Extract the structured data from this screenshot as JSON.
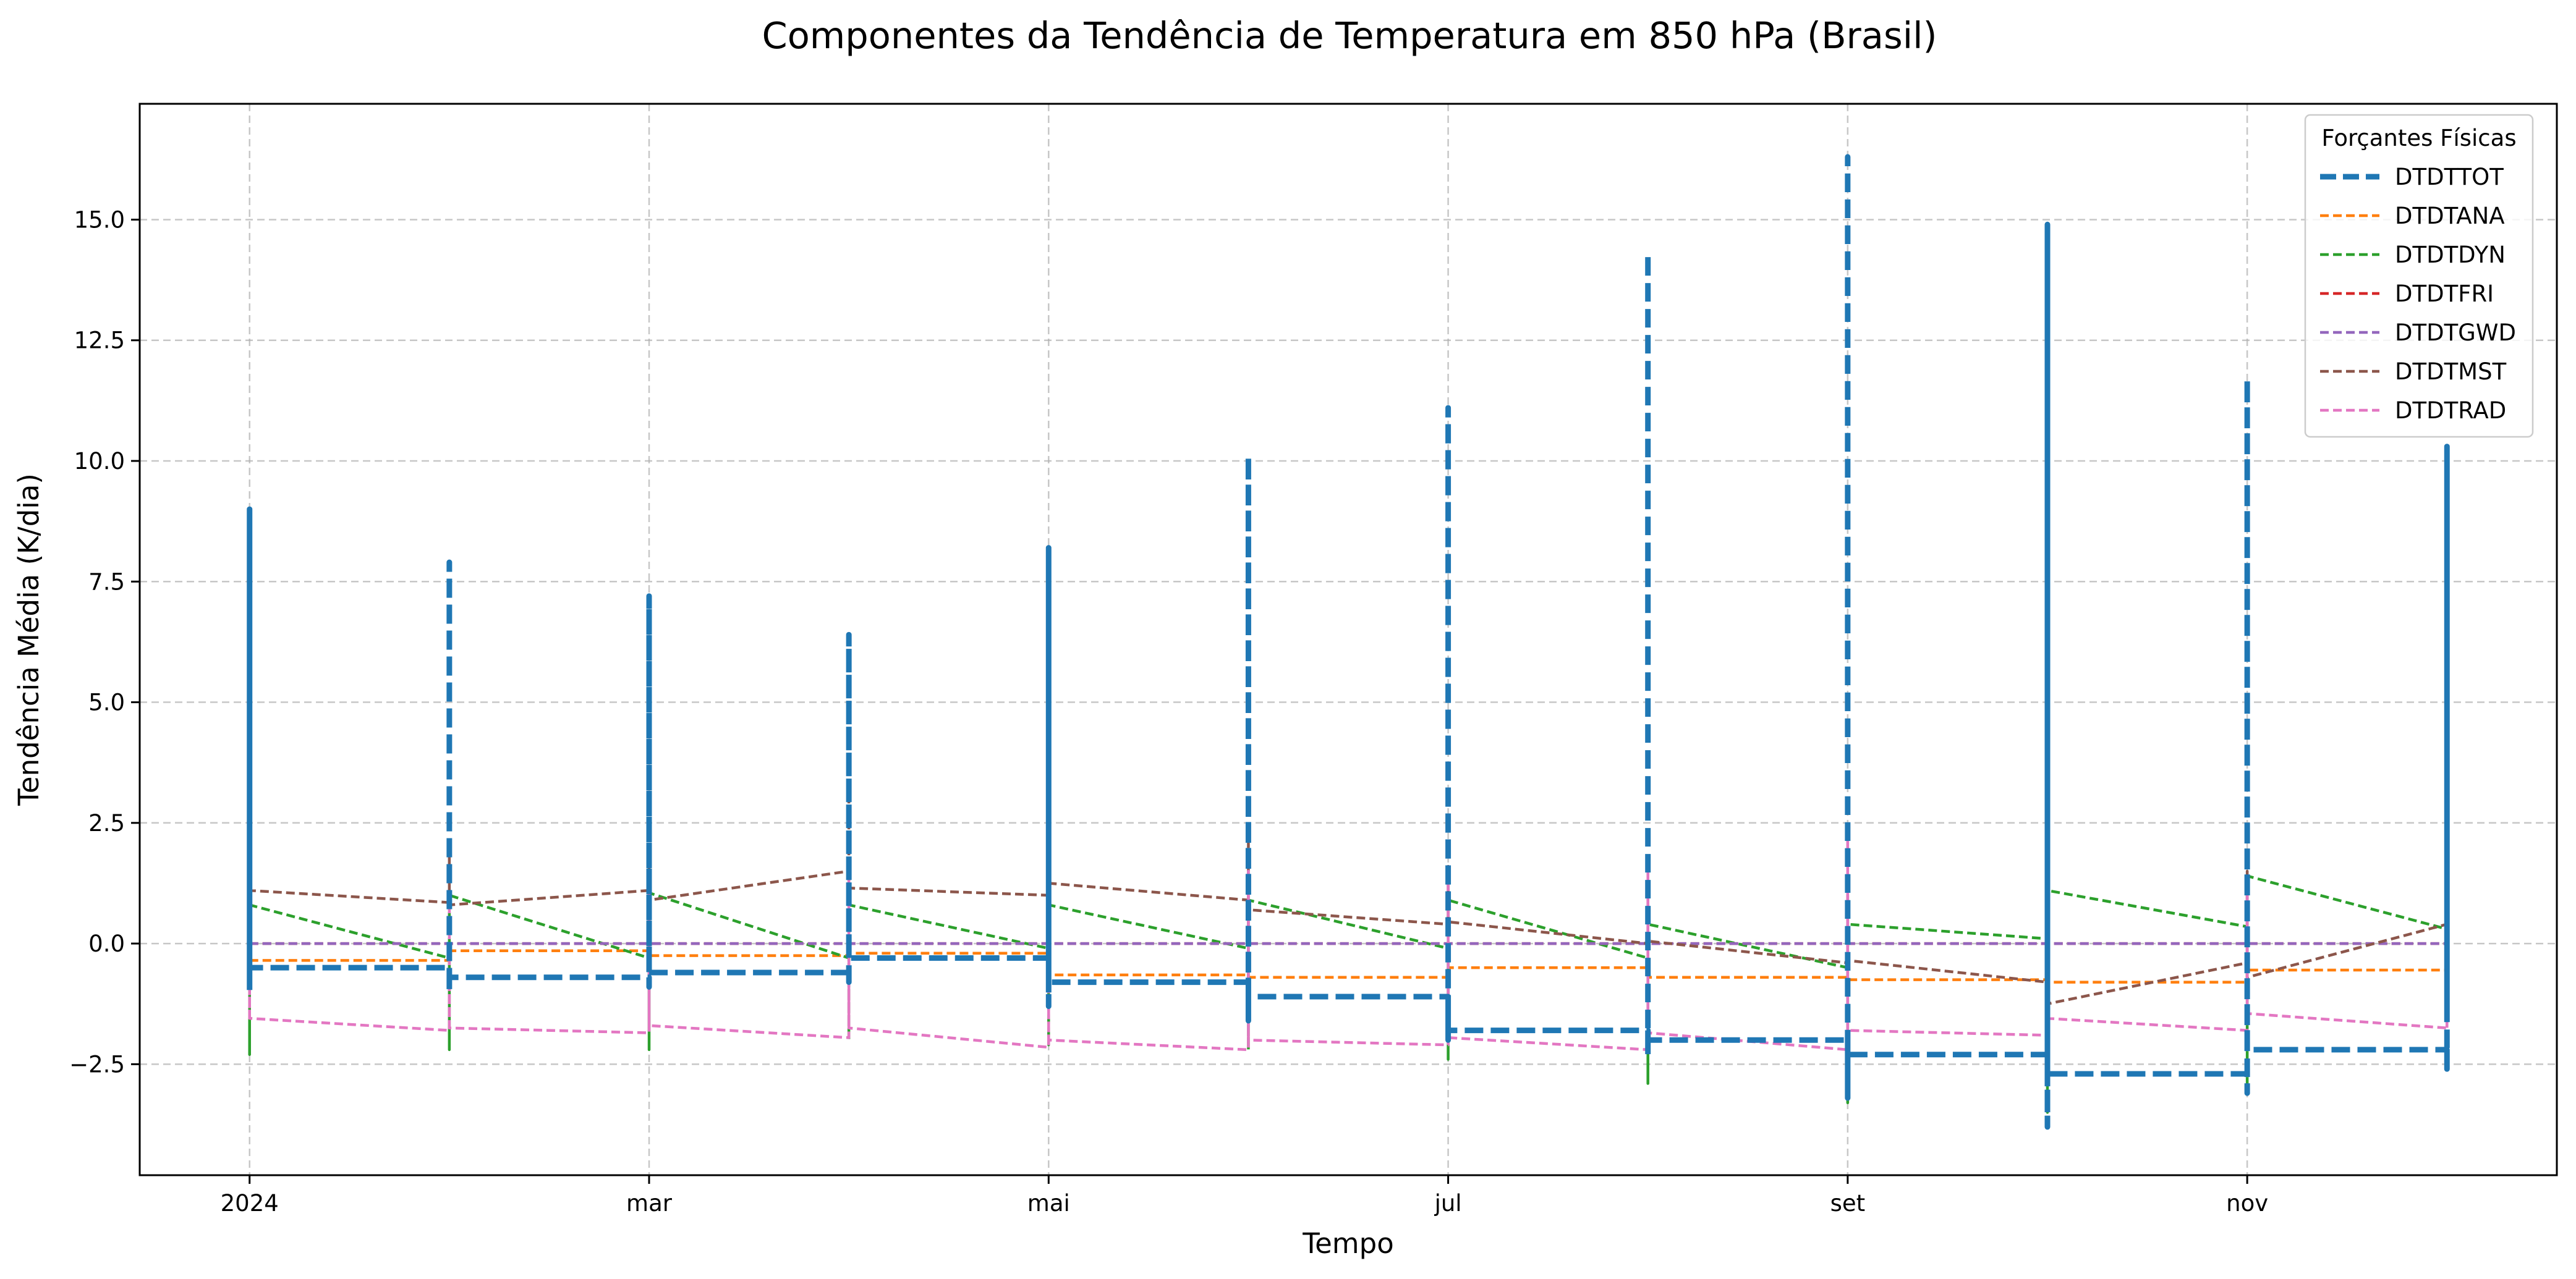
{
  "chart_data": {
    "type": "line",
    "title": "Componentes da Tendência de Temperatura em 850 hPa (Brasil)",
    "xlabel": "Tempo",
    "ylabel": "Tendência Média (K/dia)",
    "x_tick_labels": [
      "2024",
      "mar",
      "mai",
      "jul",
      "set",
      "nov"
    ],
    "x_tick_months": [
      0,
      2,
      4,
      6,
      8,
      10
    ],
    "xlim_months": [
      -0.55,
      11.55
    ],
    "y_tick_labels": [
      "−2.5",
      "0.0",
      "2.5",
      "5.0",
      "7.5",
      "10.0",
      "12.5",
      "15.0"
    ],
    "y_tick_values": [
      -2.5,
      0,
      2.5,
      5,
      7.5,
      10,
      12.5,
      15
    ],
    "ylim": [
      -4.8,
      17.4
    ],
    "grid": true,
    "legend": {
      "title": "Forçantes Físicas",
      "placement": "top-right"
    },
    "x_months": [
      0,
      1,
      2,
      3,
      4,
      5,
      6,
      7,
      8,
      9,
      10,
      11
    ],
    "series": [
      {
        "name": "DTDTTOT",
        "color": "#1f77b4",
        "emphasis": true,
        "values": [
          -0.5,
          -0.7,
          -0.6,
          -0.3,
          -0.8,
          -1.1,
          -1.8,
          -2.0,
          -2.3,
          -2.7,
          -2.2,
          -1.4
        ],
        "range_min": [
          -1.0,
          -1.0,
          -0.9,
          -0.7,
          -1.2,
          -1.5,
          -1.9,
          -2.2,
          -2.6,
          -2.8,
          -2.3,
          -1.5
        ],
        "range_max": [
          9.0,
          7.9,
          7.2,
          6.4,
          8.2,
          10.1,
          11.1,
          14.3,
          16.3,
          14.9,
          11.7,
          10.3
        ],
        "range_extreme_min": [
          -0.6,
          -0.8,
          -0.7,
          -0.8,
          -1.3,
          -1.6,
          -2.0,
          -2.3,
          -3.2,
          -3.8,
          -3.1,
          -2.6
        ]
      },
      {
        "name": "DTDTANA",
        "color": "#ff7f0e",
        "values": [
          -0.35,
          -0.15,
          -0.25,
          -0.2,
          -0.65,
          -0.7,
          -0.5,
          -0.7,
          -0.75,
          -0.8,
          -0.55,
          -0.55
        ]
      },
      {
        "name": "DTDTDYN",
        "color": "#2ca02c",
        "values": [
          0.8,
          1.0,
          1.05,
          0.8,
          0.8,
          0.9,
          0.9,
          0.4,
          0.4,
          1.1,
          1.4,
          -0.1
        ],
        "prev_values": [
          -0.2,
          -0.3,
          -0.3,
          -0.3,
          -0.1,
          -0.1,
          -0.1,
          -0.3,
          -0.5,
          0.1,
          0.35,
          0.3
        ],
        "range_min": [
          -2.3,
          -2.2,
          -2.2,
          -2.0,
          -2.1,
          -2.2,
          -2.4,
          -2.9,
          -3.3,
          -3.5,
          -3.0,
          -2.3
        ]
      },
      {
        "name": "DTDTFRI",
        "color": "#d62728",
        "values": [
          0,
          0,
          0,
          0,
          0,
          0,
          0,
          0,
          0,
          0,
          0,
          0
        ]
      },
      {
        "name": "DTDTGWD",
        "color": "#9467bd",
        "values": [
          0,
          0,
          0,
          0,
          0,
          0,
          0,
          0,
          0,
          0,
          0,
          0
        ]
      },
      {
        "name": "DTDTMST",
        "color": "#8c564b",
        "values": [
          1.1,
          0.8,
          0.9,
          1.15,
          1.25,
          0.7,
          0.45,
          0.05,
          -0.35,
          -1.25,
          -0.7,
          0.4
        ],
        "prev_values": [
          1.05,
          0.85,
          1.1,
          1.5,
          1.0,
          0.9,
          0.4,
          0.0,
          -0.4,
          -0.8,
          -0.4,
          0.4
        ],
        "range_max": [
          2.2,
          1.8,
          2.0,
          3.0,
          2.8,
          2.1,
          1.6,
          1.3,
          1.0,
          1.4,
          1.5,
          1.6
        ]
      },
      {
        "name": "DTDTRAD",
        "color": "#e377c2",
        "values": [
          -1.55,
          -1.75,
          -1.7,
          -1.75,
          -2.0,
          -2.0,
          -1.95,
          -1.85,
          -1.8,
          -1.55,
          -1.45,
          -1.75
        ],
        "prev_values": [
          -1.5,
          -1.8,
          -1.85,
          -1.95,
          -2.15,
          -2.2,
          -2.1,
          -2.2,
          -2.2,
          -1.9,
          -1.8,
          -1.75
        ],
        "range_max": [
          1.2,
          1.0,
          1.3,
          1.4,
          1.5,
          1.5,
          1.6,
          1.6,
          2.3,
          1.9,
          1.3,
          1.2
        ]
      }
    ]
  }
}
